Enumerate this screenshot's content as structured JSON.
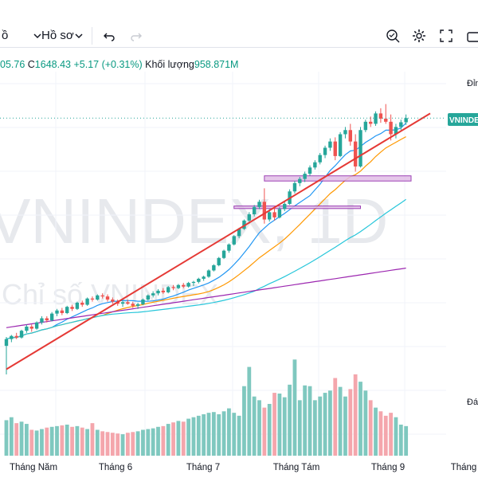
{
  "toolbar": {
    "interval_fragment": "ồ",
    "profile_label": "Hồ sơ"
  },
  "legend": {
    "open_fragment": "05.76",
    "close_label": "C",
    "close_value": "1648.43",
    "change_value": "+5.17 (+0.31%)",
    "volume_label": "Khối lượng",
    "volume_value": "958.871M"
  },
  "watermark": {
    "symbol": "VNINDEX, 1D",
    "subtitle": "Chỉ số VNINDEX"
  },
  "price_axis": {
    "top_label": "Đỉn",
    "symbol_tag": "VNINDE",
    "volume_pane_label": "Đá"
  },
  "colors": {
    "up": "#26a69a",
    "down": "#ef5350",
    "volume_up": "#7fc8bf",
    "volume_down": "#f4a6ac",
    "ma_fast": "#2196f3",
    "ma_mid": "#ff9800",
    "ma_slow": "#26c6da",
    "ma_long": "#9c27b0",
    "trendline": "#e53935",
    "zone_fill": "#e1bee7",
    "zone_border": "#8e24aa",
    "tag_bg": "#26a69a"
  },
  "chart_data": {
    "type": "candlestick",
    "symbol": "VNINDEX",
    "interval": "1D",
    "x_ticks": [
      "Tháng Năm",
      "Tháng 6",
      "Tháng 7",
      "Tháng Tám",
      "Tháng 9",
      "Tháng"
    ],
    "ylim": [
      1150,
      1720
    ],
    "candles": [
      [
        1205,
        1222,
        1150,
        1218
      ],
      [
        1218,
        1226,
        1212,
        1224
      ],
      [
        1224,
        1230,
        1218,
        1221
      ],
      [
        1221,
        1236,
        1219,
        1234
      ],
      [
        1234,
        1246,
        1230,
        1242
      ],
      [
        1242,
        1246,
        1232,
        1238
      ],
      [
        1238,
        1252,
        1236,
        1250
      ],
      [
        1250,
        1262,
        1246,
        1258
      ],
      [
        1258,
        1262,
        1250,
        1254
      ],
      [
        1254,
        1270,
        1252,
        1267
      ],
      [
        1267,
        1276,
        1262,
        1273
      ],
      [
        1273,
        1278,
        1264,
        1268
      ],
      [
        1268,
        1282,
        1266,
        1280
      ],
      [
        1280,
        1284,
        1272,
        1276
      ],
      [
        1276,
        1290,
        1274,
        1288
      ],
      [
        1288,
        1292,
        1280,
        1284
      ],
      [
        1284,
        1298,
        1282,
        1296
      ],
      [
        1296,
        1300,
        1290,
        1294
      ],
      [
        1294,
        1304,
        1292,
        1302
      ],
      [
        1302,
        1306,
        1296,
        1300
      ],
      [
        1300,
        1304,
        1290,
        1294
      ],
      [
        1294,
        1298,
        1286,
        1290
      ],
      [
        1290,
        1294,
        1282,
        1286
      ],
      [
        1286,
        1292,
        1280,
        1289
      ],
      [
        1289,
        1294,
        1284,
        1286
      ],
      [
        1286,
        1290,
        1278,
        1282
      ],
      [
        1282,
        1288,
        1276,
        1285
      ],
      [
        1285,
        1296,
        1283,
        1294
      ],
      [
        1294,
        1304,
        1292,
        1302
      ],
      [
        1302,
        1310,
        1298,
        1306
      ],
      [
        1306,
        1314,
        1302,
        1311
      ],
      [
        1311,
        1316,
        1305,
        1308
      ],
      [
        1308,
        1320,
        1306,
        1318
      ],
      [
        1318,
        1322,
        1312,
        1316
      ],
      [
        1316,
        1324,
        1314,
        1322
      ],
      [
        1322,
        1326,
        1316,
        1319
      ],
      [
        1319,
        1328,
        1317,
        1326
      ],
      [
        1326,
        1330,
        1320,
        1328
      ],
      [
        1328,
        1336,
        1325,
        1334
      ],
      [
        1334,
        1340,
        1330,
        1338
      ],
      [
        1338,
        1352,
        1336,
        1350
      ],
      [
        1350,
        1362,
        1348,
        1360
      ],
      [
        1360,
        1376,
        1358,
        1374
      ],
      [
        1374,
        1390,
        1372,
        1388
      ],
      [
        1388,
        1402,
        1384,
        1400
      ],
      [
        1400,
        1418,
        1398,
        1416
      ],
      [
        1416,
        1432,
        1412,
        1430
      ],
      [
        1430,
        1448,
        1428,
        1446
      ],
      [
        1446,
        1462,
        1440,
        1458
      ],
      [
        1458,
        1476,
        1454,
        1472
      ],
      [
        1472,
        1486,
        1468,
        1482
      ],
      [
        1482,
        1508,
        1440,
        1448
      ],
      [
        1448,
        1468,
        1444,
        1462
      ],
      [
        1462,
        1472,
        1446,
        1452
      ],
      [
        1452,
        1472,
        1450,
        1468
      ],
      [
        1468,
        1482,
        1464,
        1478
      ],
      [
        1478,
        1506,
        1476,
        1502
      ],
      [
        1502,
        1522,
        1498,
        1518
      ],
      [
        1518,
        1530,
        1512,
        1526
      ],
      [
        1526,
        1540,
        1520,
        1536
      ],
      [
        1536,
        1552,
        1532,
        1548
      ],
      [
        1548,
        1562,
        1544,
        1558
      ],
      [
        1558,
        1576,
        1554,
        1572
      ],
      [
        1572,
        1590,
        1566,
        1586
      ],
      [
        1586,
        1604,
        1580,
        1598
      ],
      [
        1598,
        1606,
        1562,
        1570
      ],
      [
        1570,
        1616,
        1568,
        1612
      ],
      [
        1612,
        1626,
        1604,
        1620
      ],
      [
        1620,
        1632,
        1590,
        1598
      ],
      [
        1598,
        1612,
        1540,
        1550
      ],
      [
        1550,
        1626,
        1548,
        1620
      ],
      [
        1620,
        1640,
        1616,
        1636
      ],
      [
        1636,
        1646,
        1626,
        1632
      ],
      [
        1632,
        1656,
        1628,
        1652
      ],
      [
        1652,
        1662,
        1634,
        1642
      ],
      [
        1642,
        1670,
        1632,
        1636
      ],
      [
        1636,
        1650,
        1600,
        1612
      ],
      [
        1612,
        1632,
        1604,
        1626
      ],
      [
        1626,
        1640,
        1620,
        1635
      ],
      [
        1635,
        1650,
        1630,
        1643
      ]
    ],
    "volume": [
      96,
      104,
      88,
      92,
      86,
      70,
      68,
      72,
      76,
      78,
      80,
      82,
      84,
      78,
      80,
      76,
      72,
      88,
      70,
      66,
      64,
      62,
      60,
      58,
      62,
      64,
      66,
      70,
      72,
      74,
      78,
      80,
      86,
      90,
      94,
      92,
      100,
      104,
      108,
      112,
      116,
      118,
      112,
      120,
      128,
      116,
      108,
      188,
      240,
      160,
      150,
      130,
      140,
      170,
      168,
      158,
      192,
      260,
      150,
      190,
      188,
      150,
      160,
      170,
      176,
      210,
      186,
      160,
      180,
      220,
      200,
      176,
      150,
      130,
      120,
      108,
      116,
      104,
      84,
      80
    ],
    "volume_ylim": [
      0,
      280
    ]
  }
}
